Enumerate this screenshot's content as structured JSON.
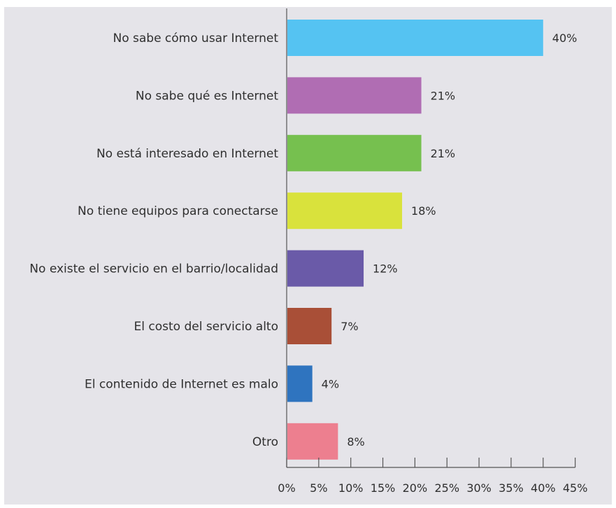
{
  "chart_data": {
    "type": "bar",
    "orientation": "horizontal",
    "categories": [
      "No sabe cómo usar Internet",
      "No sabe qué es Internet",
      "No está interesado en Internet",
      "No tiene equipos para conectarse",
      "No existe el servicio en el barrio/localidad",
      "El costo del servicio alto",
      "El contenido de Internet es malo",
      "Otro"
    ],
    "values": [
      40,
      21,
      21,
      18,
      12,
      7,
      4,
      8
    ],
    "value_labels": [
      "40%",
      "21%",
      "21%",
      "18%",
      "12%",
      "7%",
      "4%",
      "8%"
    ],
    "bar_colors": [
      "#55c3f2",
      "#b06db3",
      "#76c04f",
      "#d9e23c",
      "#6a5aa8",
      "#a94f37",
      "#2f74bf",
      "#ed7f8f"
    ],
    "xticks": [
      0,
      5,
      10,
      15,
      20,
      25,
      30,
      35,
      40,
      45
    ],
    "xtick_labels": [
      "0%",
      "5%",
      "10%",
      "15%",
      "20%",
      "25%",
      "30%",
      "35%",
      "40%",
      "45%"
    ],
    "xlim": [
      0,
      45
    ],
    "title": "",
    "xlabel": "",
    "ylabel": "",
    "grid": false,
    "legend": "none",
    "background_color": "#e5e4e9",
    "axis_color": "#555555"
  }
}
